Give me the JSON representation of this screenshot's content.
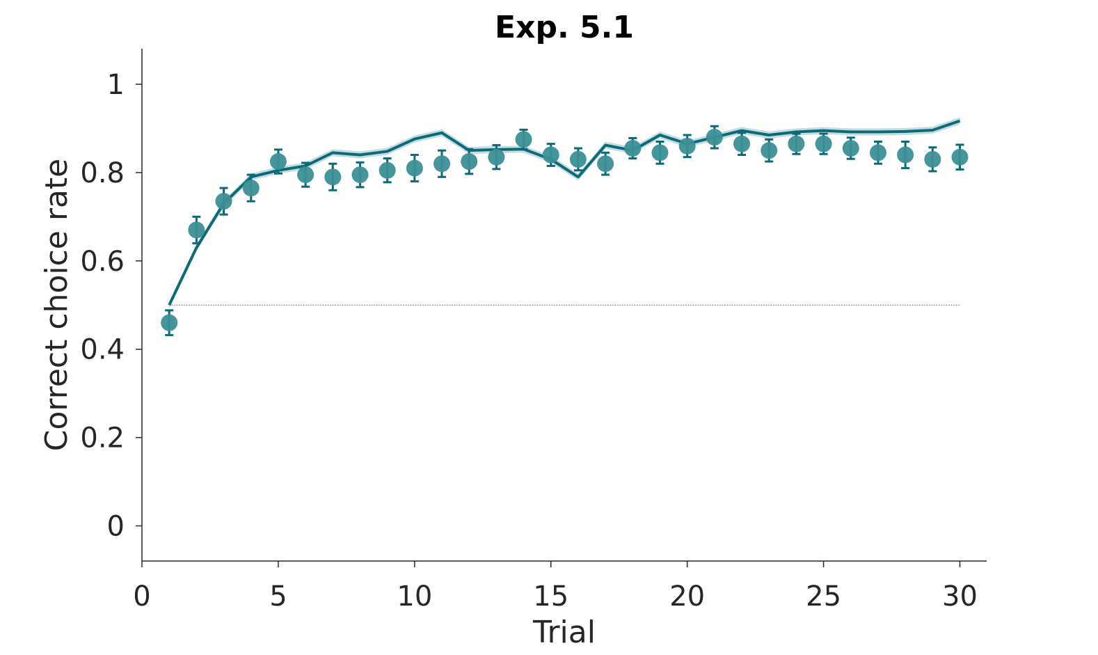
{
  "chart_data": {
    "type": "scatter",
    "title": "Exp. 5.1",
    "xlabel": "Trial",
    "ylabel": "Correct choice rate",
    "xlim": [
      0,
      31
    ],
    "ylim": [
      -0.08,
      1.08
    ],
    "xticks": [
      0,
      5,
      10,
      15,
      20,
      25,
      30
    ],
    "yticks": [
      0,
      0.2,
      0.4,
      0.6,
      0.8,
      1
    ],
    "xtick_labels": [
      "0",
      "5",
      "10",
      "15",
      "20",
      "25",
      "30"
    ],
    "ytick_labels": [
      "0",
      "0.2",
      "0.4",
      "0.6",
      "0.8",
      "1"
    ],
    "grid": false,
    "chance_level": 0.5,
    "colors": {
      "data": "#3b8f95",
      "model": "#0c6a78",
      "errorbar": "#0c6a78",
      "band": "#a9cfd3",
      "chance": "#555555"
    },
    "series": [
      {
        "kind": "points_with_errorbars",
        "x": [
          1,
          2,
          3,
          4,
          5,
          6,
          7,
          8,
          9,
          10,
          11,
          12,
          13,
          14,
          15,
          16,
          17,
          18,
          19,
          20,
          21,
          22,
          23,
          24,
          25,
          26,
          27,
          28,
          29,
          30
        ],
        "y": [
          0.46,
          0.67,
          0.735,
          0.765,
          0.825,
          0.795,
          0.79,
          0.795,
          0.805,
          0.81,
          0.82,
          0.825,
          0.835,
          0.875,
          0.84,
          0.83,
          0.82,
          0.855,
          0.845,
          0.86,
          0.88,
          0.865,
          0.85,
          0.865,
          0.865,
          0.855,
          0.845,
          0.84,
          0.83,
          0.835
        ],
        "err": [
          0.028,
          0.03,
          0.03,
          0.03,
          0.027,
          0.027,
          0.03,
          0.028,
          0.027,
          0.03,
          0.03,
          0.028,
          0.027,
          0.022,
          0.025,
          0.025,
          0.025,
          0.023,
          0.025,
          0.025,
          0.025,
          0.025,
          0.025,
          0.023,
          0.023,
          0.024,
          0.025,
          0.03,
          0.027,
          0.028
        ]
      },
      {
        "kind": "line_with_band",
        "x": [
          1,
          2,
          3,
          4,
          5,
          6,
          7,
          8,
          9,
          10,
          11,
          12,
          13,
          14,
          15,
          16,
          17,
          18,
          19,
          20,
          21,
          22,
          23,
          24,
          25,
          26,
          27,
          28,
          29,
          30
        ],
        "y": [
          0.5,
          0.63,
          0.73,
          0.79,
          0.805,
          0.815,
          0.845,
          0.84,
          0.848,
          0.876,
          0.89,
          0.85,
          0.852,
          0.853,
          0.83,
          0.79,
          0.862,
          0.85,
          0.885,
          0.865,
          0.88,
          0.895,
          0.885,
          0.892,
          0.895,
          0.892,
          0.892,
          0.893,
          0.896,
          0.917
        ],
        "band": 0.008
      }
    ]
  }
}
